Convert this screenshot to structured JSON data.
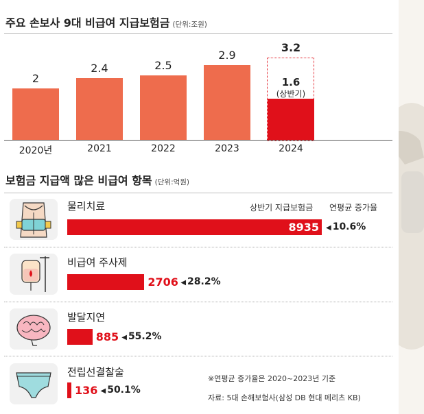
{
  "chart_data": [
    {
      "type": "bar",
      "title": "주요 손보사 9대 비급여 지급보험금",
      "unit": "(단위:조원)",
      "categories": [
        "2020년",
        "2021",
        "2022",
        "2023",
        "2024"
      ],
      "values": [
        2,
        2.4,
        2.5,
        2.9,
        1.6
      ],
      "value_labels": [
        "2",
        "2.4",
        "2.5",
        "2.9",
        "1.6"
      ],
      "ylim": [
        0,
        3.2
      ],
      "highlight": {
        "category": "2024",
        "total_label": "3.2",
        "total_value": 3.2,
        "partial_label": "1.6",
        "partial_note": "(상반기)"
      },
      "colors": {
        "bar": "#ee6c4d",
        "highlight": "#e0101a"
      }
    },
    {
      "type": "bar",
      "orientation": "horizontal",
      "title": "보험금 지급액 많은 비급여 항목",
      "unit": "(단위:억원)",
      "column_headers": {
        "value": "상반기 지급보험금",
        "growth": "연평균 증가율"
      },
      "xlim": [
        0,
        8935
      ],
      "items": [
        {
          "name": "물리치료",
          "icon": "back-brace-icon",
          "value": 8935,
          "value_label": "8935",
          "growth": "10.6%"
        },
        {
          "name": "비급여 주사제",
          "icon": "iv-drip-icon",
          "value": 2706,
          "value_label": "2706",
          "growth": "28.2%"
        },
        {
          "name": "발달지연",
          "icon": "brain-icon",
          "value": 885,
          "value_label": "885",
          "growth": "55.2%"
        },
        {
          "name": "전립선결찰술",
          "icon": "underwear-icon",
          "value": 136,
          "value_label": "136",
          "growth": "50.1%"
        }
      ],
      "growth_marker": "◀",
      "colors": {
        "bar": "#e0101a"
      }
    }
  ],
  "notes": {
    "growth_basis": "※연평균 증가율은 2020~2023년 기준",
    "source": "자료: 5대 손해보험사(삼성 DB 현대 메리츠 KB)"
  }
}
